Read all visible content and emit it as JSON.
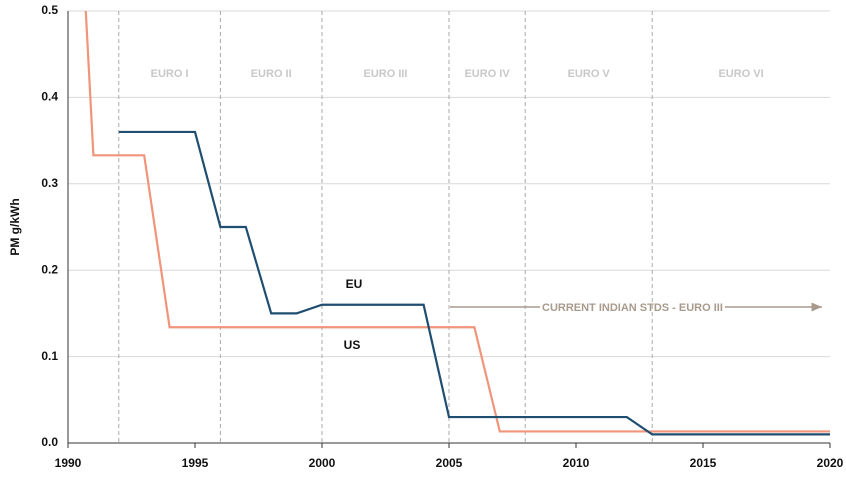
{
  "chart_data": {
    "type": "line",
    "y_label": "PM g/kWh",
    "xlim": [
      1990,
      2020
    ],
    "xticks": [
      1990,
      1995,
      2000,
      2005,
      2010,
      2015,
      2020
    ],
    "ylim": [
      0,
      0.5
    ],
    "yticks": [
      {
        "value": 0,
        "label": "0.0"
      },
      0.1,
      0.2,
      0.3,
      0.4,
      0.5
    ],
    "grid": true,
    "era_boundaries": [
      1992,
      1996,
      2000,
      2005,
      2008,
      2013
    ],
    "era_labels": [
      "EURO I",
      "EURO II",
      "EURO III",
      "EURO IV",
      "EURO V",
      "EURO VI"
    ],
    "annotation": "CURRENT INDIAN STDS - EURO III",
    "series": [
      {
        "name": "US",
        "color": "#f0957a",
        "x": [
          1990.7,
          1991,
          1993,
          1994,
          2006,
          2007,
          2020
        ],
        "values": [
          0.5,
          0.333,
          0.333,
          0.134,
          0.134,
          0.0134,
          0.0134
        ]
      },
      {
        "name": "EU",
        "color": "#1f4e70",
        "x": [
          1992,
          1995,
          1996,
          1997,
          1998,
          1999,
          2000,
          2004,
          2005,
          2012,
          2013,
          2020
        ],
        "values": [
          0.36,
          0.36,
          0.25,
          0.25,
          0.15,
          0.15,
          0.16,
          0.16,
          0.03,
          0.03,
          0.01,
          0.01
        ]
      }
    ]
  }
}
